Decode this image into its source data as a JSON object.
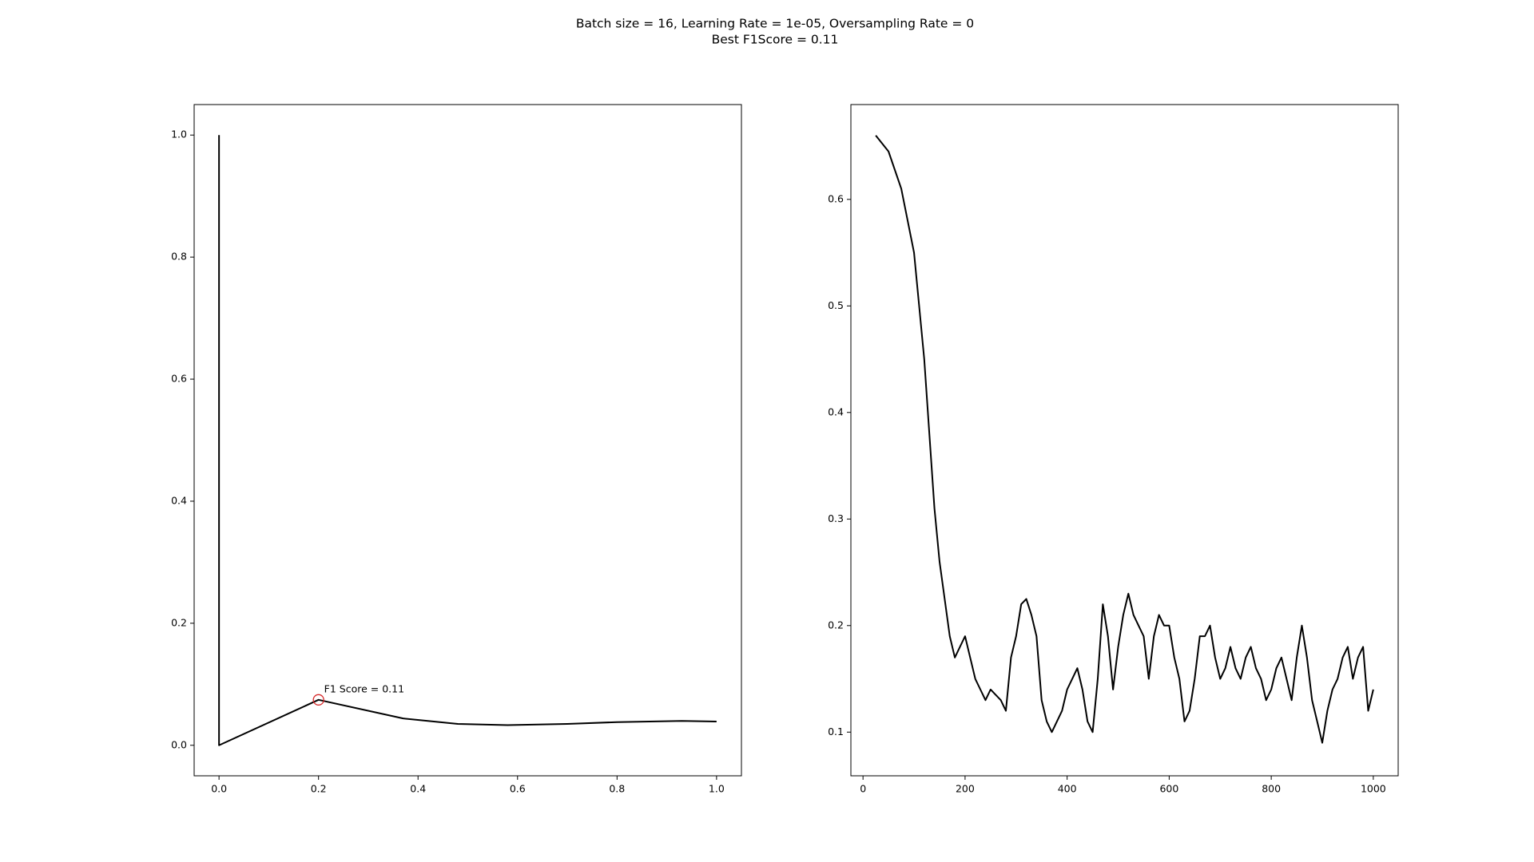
{
  "title": "Batch size = 16, Learning Rate = 1e-05, Oversampling Rate = 0",
  "subtitle": "Best F1Score = 0.11",
  "chart_data": [
    {
      "type": "line",
      "x": [
        0,
        0,
        0.2,
        0.37,
        0.48,
        0.58,
        0.7,
        0.8,
        0.93,
        1.0
      ],
      "series": [
        {
          "color": "#000000",
          "values": [
            1.0,
            0.0,
            0.0745,
            0.044,
            0.035,
            0.033,
            0.035,
            0.038,
            0.04,
            0.039
          ]
        }
      ],
      "xlim": [
        -0.05,
        1.05
      ],
      "ylim": [
        -0.05,
        1.05
      ],
      "xticks": [
        {
          "value": 0,
          "label": "0.0"
        },
        0.2,
        0.4,
        0.6,
        0.8,
        {
          "value": 1,
          "label": "1.0"
        }
      ],
      "yticks": [
        {
          "value": 0,
          "label": "0.0"
        },
        0.2,
        0.4,
        0.6,
        0.8,
        {
          "value": 1,
          "label": "1.0"
        }
      ],
      "annotation": {
        "text": "F1 Score = 0.11",
        "x": 0.2,
        "y": 0.0745,
        "color": "#d62728"
      }
    },
    {
      "type": "line",
      "x": [
        25,
        50,
        75,
        100,
        110,
        120,
        130,
        140,
        150,
        160,
        170,
        180,
        190,
        200,
        210,
        220,
        230,
        240,
        250,
        260,
        270,
        280,
        290,
        300,
        310,
        320,
        330,
        340,
        350,
        360,
        370,
        380,
        390,
        400,
        410,
        420,
        430,
        440,
        450,
        460,
        470,
        480,
        490,
        500,
        510,
        520,
        530,
        540,
        550,
        560,
        570,
        580,
        590,
        600,
        610,
        620,
        630,
        640,
        650,
        660,
        670,
        680,
        690,
        700,
        710,
        720,
        730,
        740,
        750,
        760,
        770,
        780,
        790,
        800,
        810,
        820,
        830,
        840,
        850,
        860,
        870,
        880,
        890,
        900,
        910,
        920,
        930,
        940,
        950,
        960,
        970,
        980,
        990,
        1000
      ],
      "series": [
        {
          "color": "#000000",
          "values": [
            0.66,
            0.645,
            0.61,
            0.55,
            0.5,
            0.45,
            0.38,
            0.31,
            0.26,
            0.225,
            0.19,
            0.17,
            0.18,
            0.19,
            0.17,
            0.15,
            0.14,
            0.13,
            0.14,
            0.135,
            0.13,
            0.12,
            0.17,
            0.19,
            0.22,
            0.225,
            0.21,
            0.19,
            0.13,
            0.11,
            0.1,
            0.11,
            0.12,
            0.14,
            0.15,
            0.16,
            0.14,
            0.11,
            0.1,
            0.15,
            0.22,
            0.19,
            0.14,
            0.18,
            0.21,
            0.23,
            0.21,
            0.2,
            0.19,
            0.15,
            0.19,
            0.21,
            0.2,
            0.2,
            0.17,
            0.15,
            0.11,
            0.12,
            0.15,
            0.19,
            0.19,
            0.2,
            0.17,
            0.15,
            0.16,
            0.18,
            0.16,
            0.15,
            0.17,
            0.18,
            0.16,
            0.15,
            0.13,
            0.14,
            0.16,
            0.17,
            0.15,
            0.13,
            0.17,
            0.2,
            0.17,
            0.13,
            0.11,
            0.09,
            0.12,
            0.14,
            0.15,
            0.17,
            0.18,
            0.15,
            0.17,
            0.18,
            0.12,
            0.14
          ]
        }
      ],
      "xlim": [
        -23.75,
        1048.75
      ],
      "ylim": [
        0.059,
        0.689
      ],
      "xticks": [
        0,
        200,
        400,
        600,
        800,
        1000
      ],
      "yticks": [
        0.1,
        0.2,
        0.3,
        0.4,
        0.5,
        0.6
      ]
    }
  ]
}
